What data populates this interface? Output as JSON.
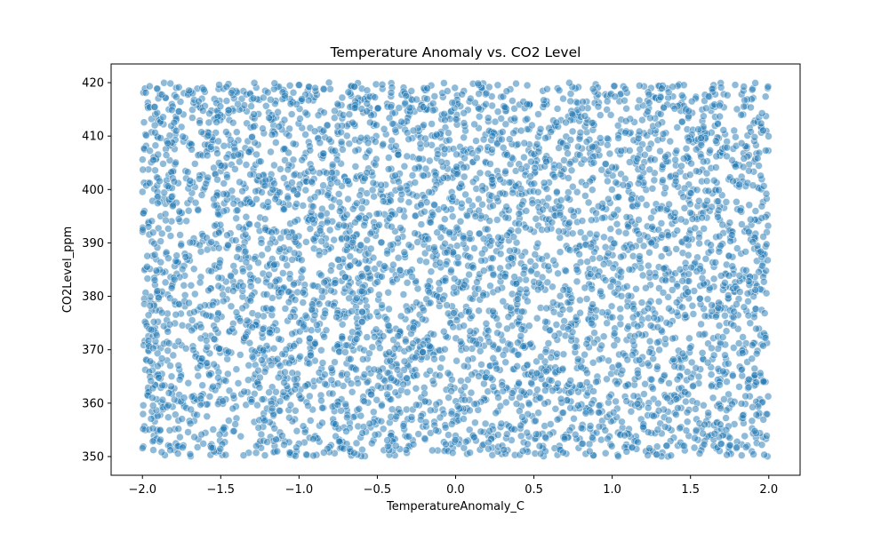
{
  "chart_data": {
    "type": "scatter",
    "title": "Temperature Anomaly vs. CO2 Level",
    "xlabel": "TemperatureAnomaly_C",
    "ylabel": "CO2Level_ppm",
    "xlim": [
      -2.2,
      2.2
    ],
    "ylim": [
      346.5,
      423.5
    ],
    "x_ticks": [
      -2.0,
      -1.5,
      -1.0,
      -0.5,
      0.0,
      0.5,
      1.0,
      1.5,
      2.0
    ],
    "x_tick_labels": [
      "−2.0",
      "−1.5",
      "−1.0",
      "−0.5",
      "0.0",
      "0.5",
      "1.0",
      "1.5",
      "2.0"
    ],
    "y_ticks": [
      350,
      360,
      370,
      380,
      390,
      400,
      410,
      420
    ],
    "y_tick_labels": [
      "350",
      "360",
      "370",
      "380",
      "390",
      "400",
      "410",
      "420"
    ],
    "grid": false,
    "series": [
      {
        "name": "points",
        "color": "#1f77b4",
        "alpha": 0.5,
        "distribution": "uniform",
        "count": 5000,
        "x_range": [
          -2.0,
          2.0
        ],
        "y_range": [
          350,
          420
        ]
      }
    ]
  }
}
